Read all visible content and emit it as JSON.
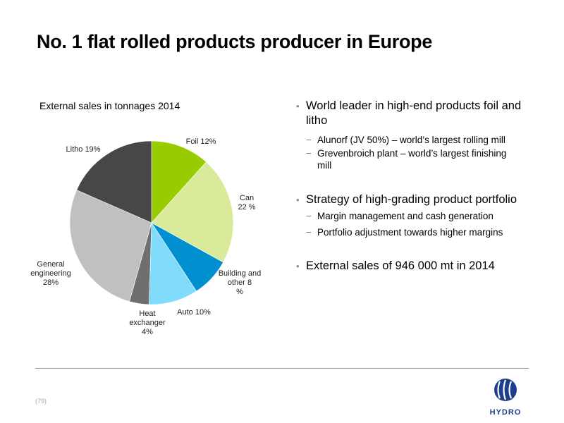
{
  "title": "No. 1 flat rolled products producer in Europe",
  "chart_data": {
    "type": "pie",
    "title": "External sales in tonnages 2014",
    "slices": [
      {
        "label": "Foil 12%",
        "value": 12,
        "color": "#99cc00"
      },
      {
        "label": "Can 22 %",
        "value": 22,
        "color": "#d9ea9a"
      },
      {
        "label": "Building and other 8 %",
        "value": 8,
        "color": "#0090d0"
      },
      {
        "label": "Auto 10%",
        "value": 10,
        "color": "#80dcfa"
      },
      {
        "label": "Heat exchanger 4%",
        "value": 4,
        "color": "#6f6f6f"
      },
      {
        "label": "General engineering 28%",
        "value": 28,
        "color": "#c0c0c0"
      },
      {
        "label": "Litho 19%",
        "value": 19,
        "color": "#474747"
      }
    ]
  },
  "bullets": [
    {
      "text": "World leader in high-end products foil and litho",
      "sub": [
        "Alunorf (JV 50%) – world’s largest rolling mill",
        "Grevenbroich plant – world’s largest finishing mill"
      ]
    },
    {
      "text": "Strategy of high-grading product portfolio",
      "sub": [
        "Margin management and cash generation",
        "Portfolio adjustment towards higher margins"
      ]
    },
    {
      "text": "External sales of 946 000 mt in 2014",
      "sub": []
    }
  ],
  "page_number": "(79)",
  "logo_text": "HYDRO"
}
